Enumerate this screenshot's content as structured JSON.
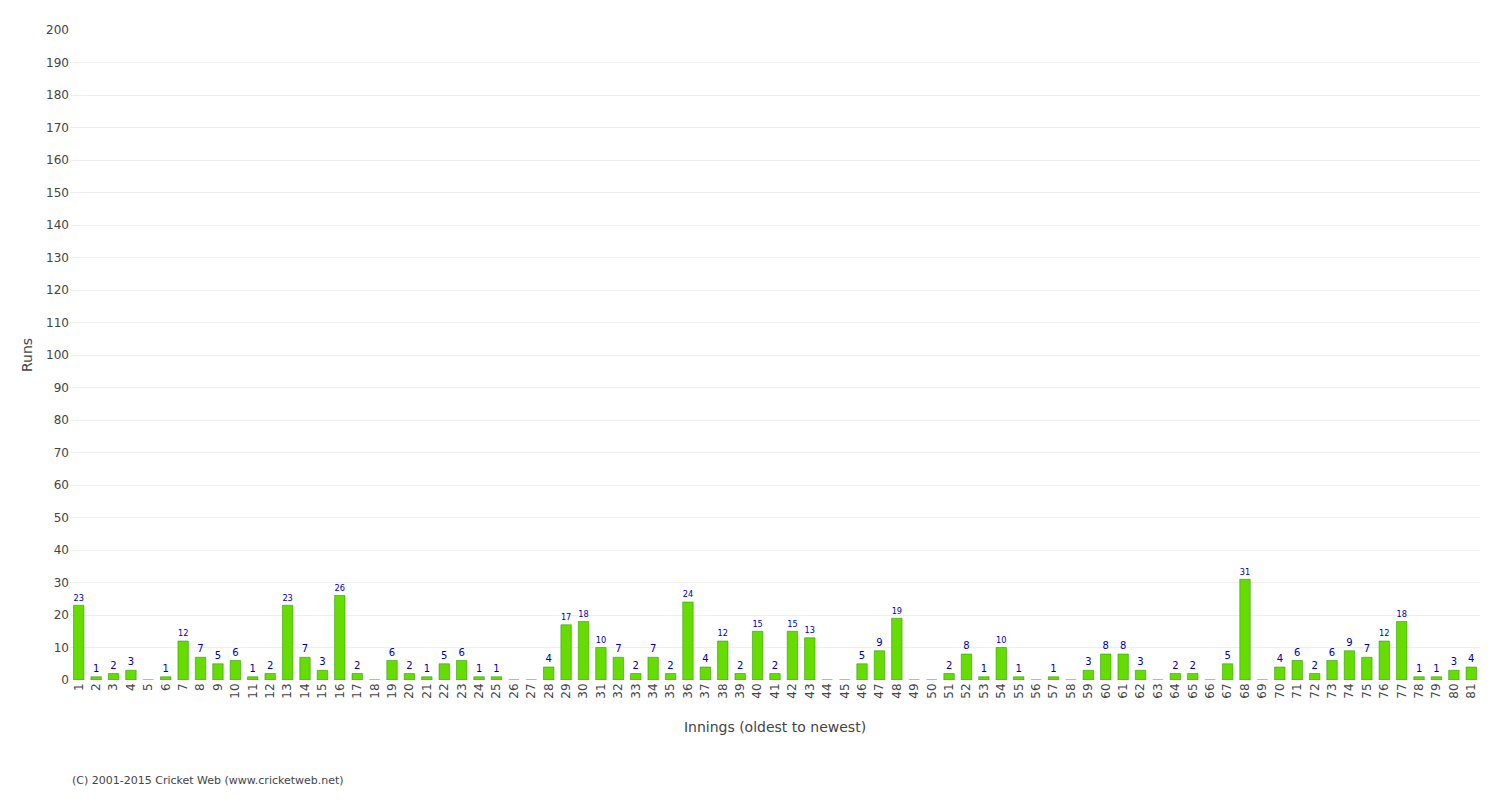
{
  "chart_data": {
    "type": "bar",
    "xlabel": "Innings (oldest to newest)",
    "ylabel": "Runs",
    "categories": [
      "1",
      "2",
      "3",
      "4",
      "5",
      "6",
      "7",
      "8",
      "9",
      "10",
      "11",
      "12",
      "13",
      "14",
      "15",
      "16",
      "17",
      "18",
      "19",
      "20",
      "21",
      "22",
      "23",
      "24",
      "25",
      "26",
      "27",
      "28",
      "29",
      "30",
      "31",
      "32",
      "33",
      "34",
      "35",
      "36",
      "37",
      "38",
      "39",
      "40",
      "41",
      "42",
      "43",
      "44",
      "45",
      "46",
      "47",
      "48",
      "49",
      "50",
      "51",
      "52",
      "53",
      "54",
      "55",
      "56",
      "57",
      "58",
      "59",
      "60",
      "61",
      "62",
      "63",
      "64",
      "65",
      "66",
      "67",
      "68",
      "69",
      "70",
      "71",
      "72",
      "73",
      "74",
      "75",
      "76",
      "77",
      "78",
      "79",
      "80",
      "81"
    ],
    "values": [
      23,
      1,
      2,
      3,
      0,
      1,
      12,
      7,
      5,
      6,
      1,
      2,
      23,
      7,
      3,
      26,
      2,
      0,
      6,
      2,
      1,
      5,
      6,
      1,
      1,
      0,
      0,
      4,
      17,
      18,
      10,
      7,
      2,
      7,
      2,
      24,
      4,
      12,
      2,
      15,
      2,
      15,
      13,
      0,
      0,
      5,
      9,
      19,
      0,
      0,
      2,
      8,
      1,
      10,
      1,
      0,
      1,
      0,
      3,
      8,
      8,
      3,
      0,
      2,
      2,
      0,
      5,
      31,
      0,
      4,
      6,
      2,
      6,
      9,
      7,
      12,
      18,
      1,
      1,
      3,
      4
    ],
    "value_labels": [
      "23",
      "1",
      "2",
      "3",
      null,
      "1",
      "12",
      "7",
      "5",
      "6",
      "1",
      "2",
      "23",
      "7",
      "3",
      "26",
      "2",
      null,
      "6",
      "2",
      "1",
      "5",
      "6",
      "1",
      "1",
      null,
      null,
      "4",
      "17",
      "18",
      "10",
      "7",
      "2",
      "7",
      "2",
      "24",
      "4",
      "12",
      "2",
      "15",
      "2",
      "15",
      "13",
      null,
      null,
      "5",
      "9",
      "19",
      null,
      null,
      "2",
      "8",
      "1",
      "10",
      "1",
      null,
      "1",
      null,
      "3",
      "8",
      "8",
      "3",
      null,
      "2",
      "2",
      null,
      "5",
      "31",
      null,
      "4",
      "6",
      "2",
      "6",
      "9",
      "7",
      "12",
      "18",
      "1",
      "1",
      "3",
      "4"
    ],
    "color": "#66DD00",
    "ylim": [
      0,
      200
    ],
    "yticks": [
      0,
      10,
      20,
      30,
      40,
      50,
      60,
      70,
      80,
      90,
      100,
      110,
      120,
      130,
      140,
      150,
      160,
      170,
      180,
      190,
      200
    ],
    "grid": true,
    "annotations": [
      "(C) 2001-2015 Cricket Web (www.cricketweb.net)"
    ]
  }
}
